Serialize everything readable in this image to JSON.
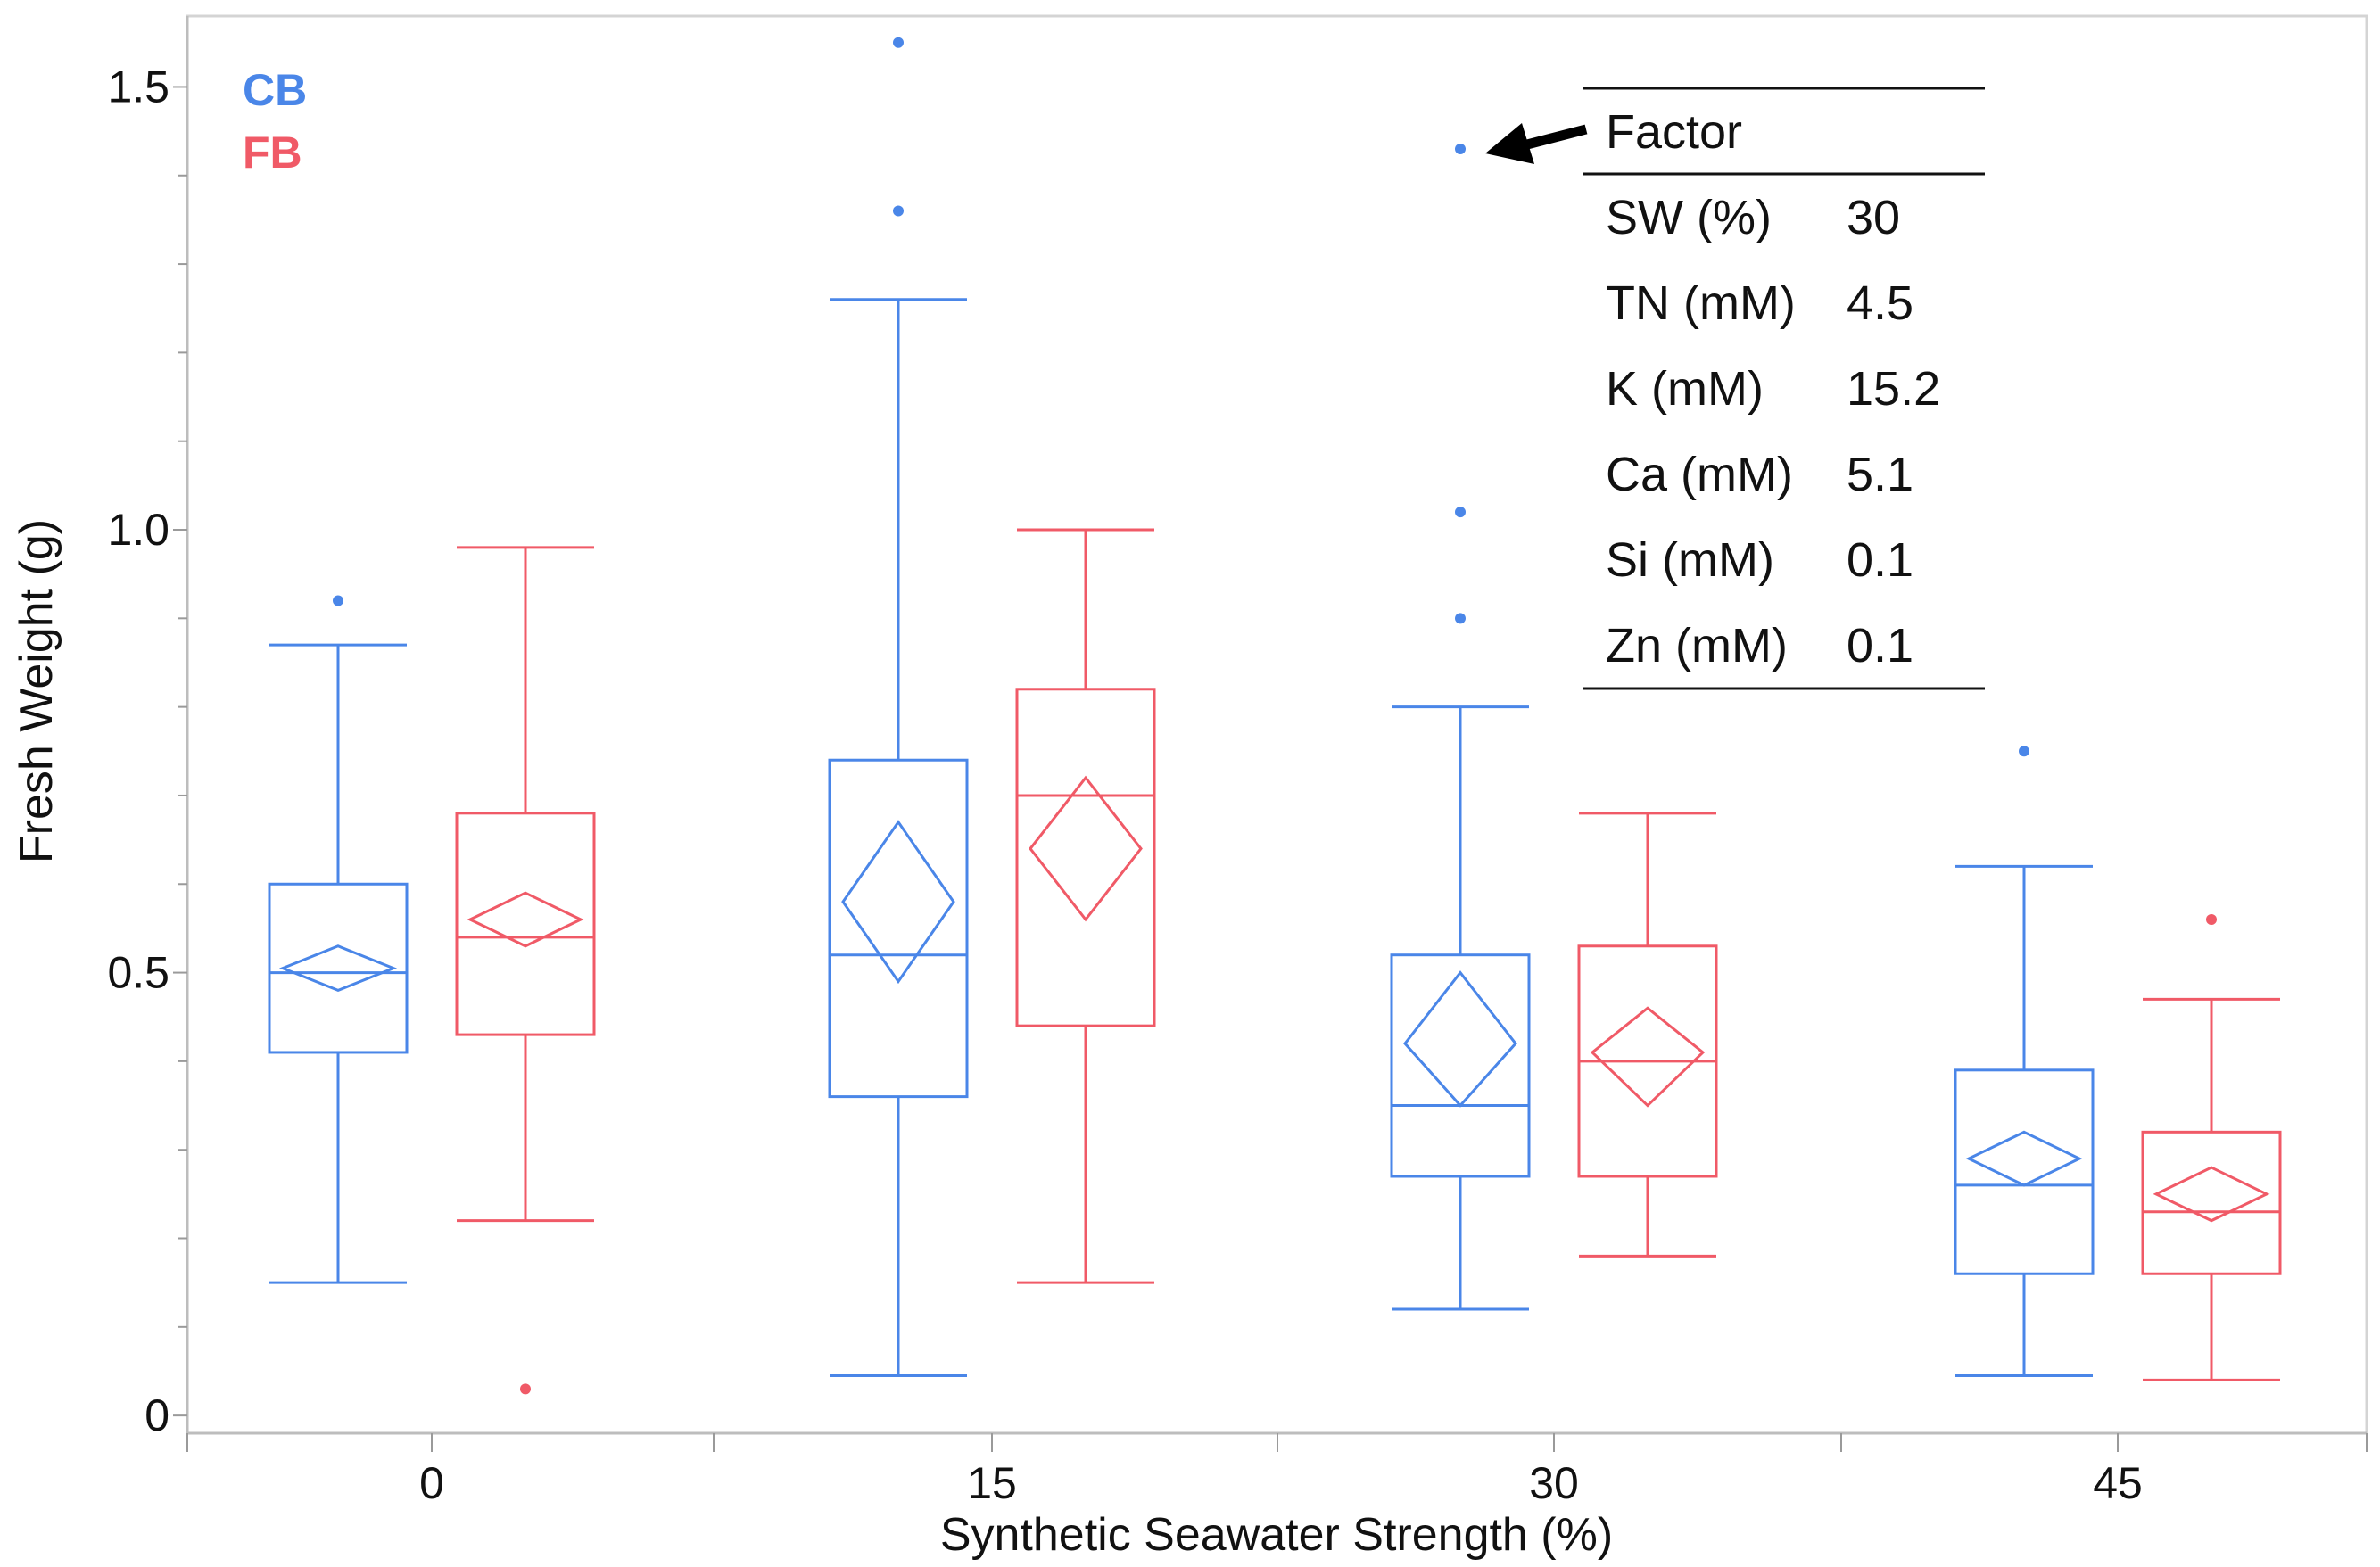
{
  "chart_data": {
    "type": "boxplot",
    "title": "",
    "xlabel": "Synthetic Seawater Strength (%)",
    "ylabel": "Fresh Weight (g)",
    "ylim": [
      -0.02,
      1.58
    ],
    "yticks": [
      "0",
      "0.5",
      "1.0",
      "1.5"
    ],
    "ytick_values": [
      0,
      0.5,
      1.0,
      1.5
    ],
    "categories": [
      "0",
      "15",
      "30",
      "45"
    ],
    "series": [
      {
        "name": "CB",
        "color": "#4a86e8",
        "boxes": [
          {
            "min": 0.15,
            "q1": 0.41,
            "median": 0.5,
            "q3": 0.6,
            "max": 0.87,
            "mean": 0.505,
            "mean_ci": [
              0.48,
              0.53
            ],
            "outliers": [
              0.92
            ]
          },
          {
            "min": 0.045,
            "q1": 0.36,
            "median": 0.52,
            "q3": 0.74,
            "max": 1.26,
            "mean": 0.58,
            "mean_ci": [
              0.49,
              0.67
            ],
            "outliers": [
              1.36,
              1.55
            ]
          },
          {
            "min": 0.12,
            "q1": 0.27,
            "median": 0.35,
            "q3": 0.52,
            "max": 0.8,
            "mean": 0.42,
            "mean_ci": [
              0.35,
              0.5
            ],
            "outliers": [
              0.9,
              1.02,
              1.43
            ]
          },
          {
            "min": 0.045,
            "q1": 0.16,
            "median": 0.26,
            "q3": 0.39,
            "max": 0.62,
            "mean": 0.29,
            "mean_ci": [
              0.26,
              0.32
            ],
            "outliers": [
              0.75
            ]
          }
        ]
      },
      {
        "name": "FB",
        "color": "#f05a67",
        "boxes": [
          {
            "min": 0.22,
            "q1": 0.43,
            "median": 0.54,
            "q3": 0.68,
            "max": 0.98,
            "mean": 0.56,
            "mean_ci": [
              0.53,
              0.59
            ],
            "outliers": [
              0.03
            ]
          },
          {
            "min": 0.15,
            "q1": 0.44,
            "median": 0.7,
            "q3": 0.82,
            "max": 1.0,
            "mean": 0.64,
            "mean_ci": [
              0.56,
              0.72
            ],
            "outliers": []
          },
          {
            "min": 0.18,
            "q1": 0.27,
            "median": 0.4,
            "q3": 0.53,
            "max": 0.68,
            "mean": 0.41,
            "mean_ci": [
              0.35,
              0.46
            ],
            "outliers": []
          },
          {
            "min": 0.04,
            "q1": 0.16,
            "median": 0.23,
            "q3": 0.32,
            "max": 0.47,
            "mean": 0.25,
            "mean_ci": [
              0.22,
              0.28
            ],
            "outliers": [
              0.56
            ]
          }
        ]
      }
    ],
    "annotation": {
      "arrow_target": {
        "category": "30",
        "series": "CB",
        "value": 1.43
      },
      "table": {
        "header": "Factor",
        "rows": [
          {
            "label": "SW (%)",
            "value": "30"
          },
          {
            "label": "TN (mM)",
            "value": "4.5"
          },
          {
            "label": "K (mM)",
            "value": "15.2"
          },
          {
            "label": "Ca (mM)",
            "value": "5.1"
          },
          {
            "label": "Si (mM)",
            "value": "0.1"
          },
          {
            "label": "Zn (mM)",
            "value": "0.1"
          }
        ]
      }
    }
  }
}
